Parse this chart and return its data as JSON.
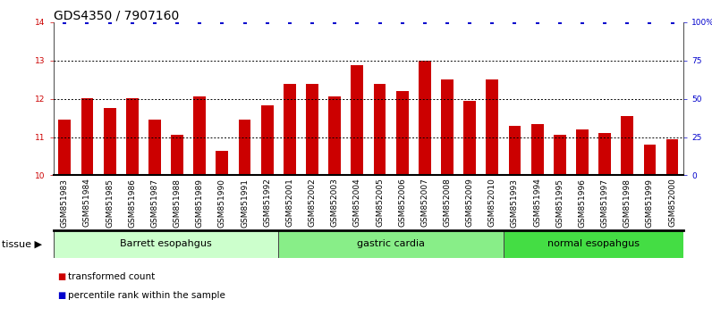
{
  "title": "GDS4350 / 7907160",
  "samples": [
    "GSM851983",
    "GSM851984",
    "GSM851985",
    "GSM851986",
    "GSM851987",
    "GSM851988",
    "GSM851989",
    "GSM851990",
    "GSM851991",
    "GSM851992",
    "GSM852001",
    "GSM852002",
    "GSM852003",
    "GSM852004",
    "GSM852005",
    "GSM852006",
    "GSM852007",
    "GSM852008",
    "GSM852009",
    "GSM852010",
    "GSM851993",
    "GSM851994",
    "GSM851995",
    "GSM851996",
    "GSM851997",
    "GSM851998",
    "GSM851999",
    "GSM852000"
  ],
  "values": [
    11.45,
    12.02,
    11.75,
    12.02,
    11.45,
    11.05,
    12.07,
    10.65,
    11.45,
    11.82,
    12.38,
    12.38,
    12.05,
    12.88,
    12.38,
    12.2,
    13.0,
    12.5,
    11.95,
    12.5,
    11.3,
    11.35,
    11.05,
    11.2,
    11.1,
    11.55,
    10.8,
    10.95
  ],
  "percentile_values": [
    100,
    100,
    100,
    100,
    100,
    100,
    100,
    100,
    100,
    100,
    100,
    100,
    100,
    100,
    100,
    100,
    100,
    100,
    100,
    100,
    100,
    100,
    100,
    100,
    100,
    100,
    100,
    100
  ],
  "bar_color": "#cc0000",
  "percentile_color": "#0000cc",
  "ylim_left": [
    10,
    14
  ],
  "ylim_right": [
    0,
    100
  ],
  "yticks_left": [
    10,
    11,
    12,
    13,
    14
  ],
  "ytick_labels_left": [
    "10",
    "11",
    "12",
    "13",
    "14"
  ],
  "yticks_right": [
    0,
    25,
    50,
    75,
    100
  ],
  "ytick_labels_right": [
    "0",
    "25",
    "50",
    "75",
    "100%"
  ],
  "groups": [
    {
      "label": "Barrett esopahgus",
      "start": 0,
      "end": 10,
      "color": "#ccffcc"
    },
    {
      "label": "gastric cardia",
      "start": 10,
      "end": 20,
      "color": "#88ee88"
    },
    {
      "label": "normal esopahgus",
      "start": 20,
      "end": 28,
      "color": "#44dd44"
    }
  ],
  "legend_bar_label": "transformed count",
  "legend_percentile_label": "percentile rank within the sample",
  "tissue_label": "tissue",
  "background_color": "#ffffff",
  "xtick_bg_color": "#cccccc",
  "title_fontsize": 10,
  "tick_fontsize": 6.5,
  "xtick_fontsize": 6.5,
  "label_fontsize": 8,
  "legend_fontsize": 7.5
}
